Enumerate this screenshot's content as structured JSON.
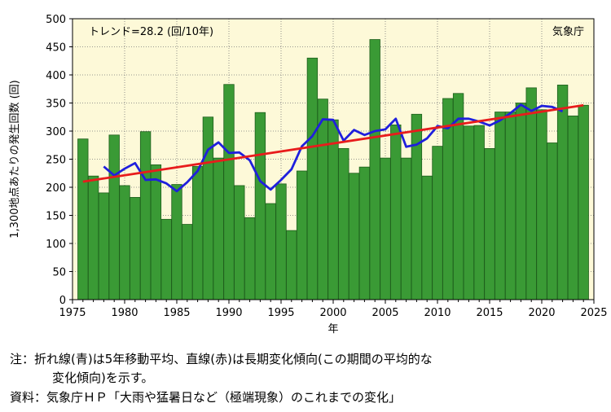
{
  "chart_data": {
    "type": "bar",
    "title": "",
    "xlabel": "年",
    "ylabel": "1,300地点あたりの発生回数 (回)",
    "trend_label": "トレンド=28.2 (回/10年)",
    "source_mark": "気象庁",
    "xlim": [
      1975,
      2025
    ],
    "ylim": [
      0,
      500
    ],
    "x_ticks": [
      1975,
      1980,
      1985,
      1990,
      1995,
      2000,
      2005,
      2010,
      2015,
      2020,
      2025
    ],
    "y_ticks": [
      0,
      50,
      100,
      150,
      200,
      250,
      300,
      350,
      400,
      450,
      500
    ],
    "grid": "dotted",
    "bar_color": "#3a9a35",
    "bar_border": "#1e5e1c",
    "plot_bg": "#fdf9d8",
    "years": [
      1976,
      1977,
      1978,
      1979,
      1980,
      1981,
      1982,
      1983,
      1984,
      1985,
      1986,
      1987,
      1988,
      1989,
      1990,
      1991,
      1992,
      1993,
      1994,
      1995,
      1996,
      1997,
      1998,
      1999,
      2000,
      2001,
      2002,
      2003,
      2004,
      2005,
      2006,
      2007,
      2008,
      2009,
      2010,
      2011,
      2012,
      2013,
      2014,
      2015,
      2016,
      2017,
      2018,
      2019,
      2020,
      2021,
      2022,
      2023,
      2024
    ],
    "values": [
      286,
      220,
      190,
      293,
      203,
      182,
      299,
      240,
      143,
      205,
      134,
      237,
      325,
      252,
      383,
      203,
      146,
      333,
      171,
      206,
      123,
      229,
      430,
      357,
      320,
      269,
      225,
      236,
      463,
      252,
      311,
      252,
      330,
      220,
      273,
      358,
      367,
      309,
      310,
      269,
      334,
      334,
      350,
      377,
      338,
      279,
      382,
      327,
      346
    ],
    "series": [
      {
        "name": "5年移動平均",
        "color": "#1f1fdd",
        "years": [
          1978,
          1979,
          1980,
          1981,
          1982,
          1983,
          1984,
          1985,
          1986,
          1987,
          1988,
          1989,
          1990,
          1991,
          1992,
          1993,
          1994,
          1995,
          1996,
          1997,
          1998,
          1999,
          2000,
          2001,
          2002,
          2003,
          2004,
          2005,
          2006,
          2007,
          2008,
          2009,
          2010,
          2011,
          2012,
          2013,
          2014,
          2015,
          2016,
          2017,
          2018,
          2019,
          2020,
          2021,
          2022
        ],
        "values": [
          237,
          221,
          233,
          243,
          213,
          214,
          207,
          193,
          209,
          229,
          267,
          280,
          261,
          262,
          248,
          211,
          196,
          213,
          232,
          273,
          291,
          321,
          320,
          283,
          302,
          293,
          300,
          303,
          322,
          272,
          276,
          287,
          309,
          305,
          322,
          322,
          317,
          310,
          319,
          332,
          347,
          336,
          345,
          343,
          335
        ]
      },
      {
        "name": "長期変化傾向",
        "color": "#e81c1c",
        "years": [
          1976,
          2024
        ],
        "values": [
          210,
          346
        ]
      }
    ]
  },
  "notes": {
    "line1": "注：折れ線(青)は5年移動平均、直線(赤)は長期変化傾向(この期間の平均的な",
    "line2": "変化傾向)を示す。",
    "line3": "資料：気象庁ＨＰ「大雨や猛暑日など（極端現象）のこれまでの変化」"
  }
}
